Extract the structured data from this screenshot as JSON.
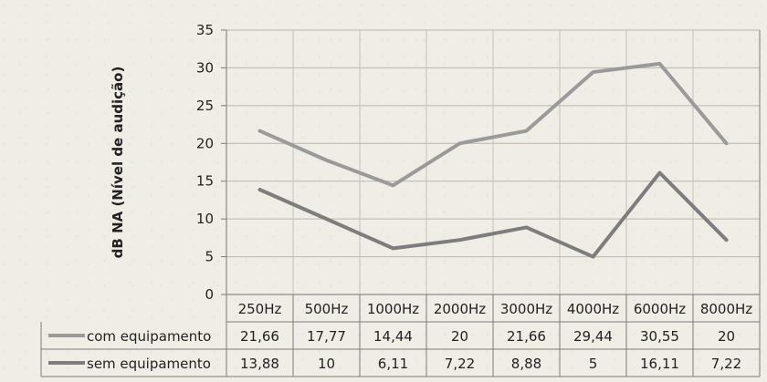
{
  "chart_data": {
    "type": "line",
    "categories": [
      "250Hz",
      "500Hz",
      "1000Hz",
      "2000Hz",
      "3000Hz",
      "4000Hz",
      "6000Hz",
      "8000Hz"
    ],
    "series": [
      {
        "name": "com equipamento",
        "values": [
          21.66,
          17.77,
          14.44,
          20,
          21.66,
          29.44,
          30.55,
          20
        ],
        "labels": [
          "21,66",
          "17,77",
          "14,44",
          "20",
          "21,66",
          "29,44",
          "30,55",
          "20"
        ],
        "color": "#9a9a9a"
      },
      {
        "name": "sem equipamento",
        "values": [
          13.88,
          10,
          6.11,
          7.22,
          8.88,
          5,
          16.11,
          7.22
        ],
        "labels": [
          "13,88",
          "10",
          "6,11",
          "7,22",
          "8,88",
          "5",
          "16,11",
          "7,22"
        ],
        "color": "#7d7d7d"
      }
    ],
    "yticks": [
      "0",
      "5",
      "10",
      "15",
      "20",
      "25",
      "30",
      "35"
    ],
    "ylim": [
      0,
      35
    ],
    "ylabel": "dB NA (Nível de audição)",
    "xlabel": "",
    "grid": true,
    "legend": "data-table"
  }
}
